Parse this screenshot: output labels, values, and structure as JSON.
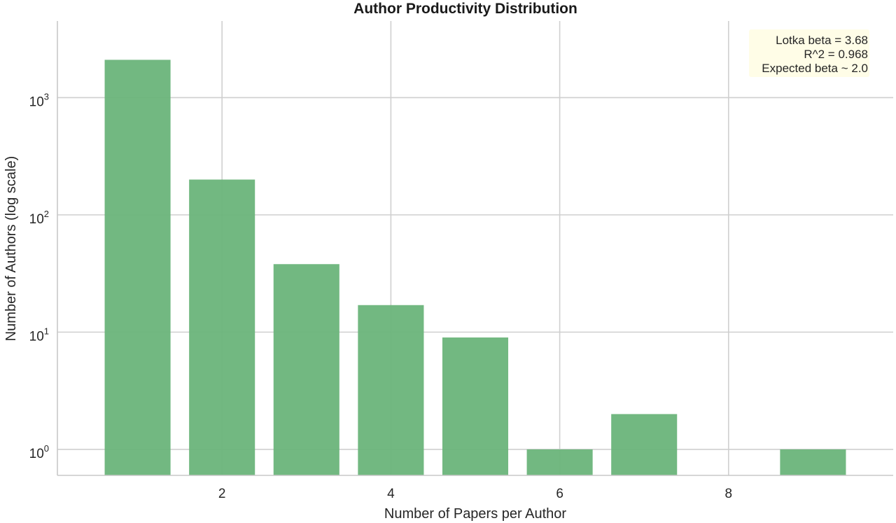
{
  "chart_data": {
    "type": "bar",
    "title": "Author Productivity Distribution",
    "xlabel": "Number of Papers per Author",
    "ylabel": "Number of Authors (log scale)",
    "x": [
      1,
      2,
      3,
      4,
      5,
      6,
      7,
      9
    ],
    "values": [
      2100,
      200,
      38,
      17,
      9,
      1,
      2,
      1
    ],
    "xticks": [
      2,
      4,
      6,
      8
    ],
    "yscale": "log",
    "yticks": [
      {
        "base": "10",
        "exp": "0",
        "value": 1
      },
      {
        "base": "10",
        "exp": "1",
        "value": 10
      },
      {
        "base": "10",
        "exp": "2",
        "value": 100
      },
      {
        "base": "10",
        "exp": "3",
        "value": 1000
      }
    ],
    "xlim": [
      0.05,
      9.95
    ],
    "ylim": [
      0.6,
      4500
    ],
    "bar_color": "#6ab47a",
    "grid": true,
    "annotation": {
      "lines": [
        "Lotka beta = 3.68",
        "R^2 = 0.968",
        "Expected beta ~ 2.0"
      ],
      "background": "#fffde7",
      "placement": "top-right"
    }
  }
}
